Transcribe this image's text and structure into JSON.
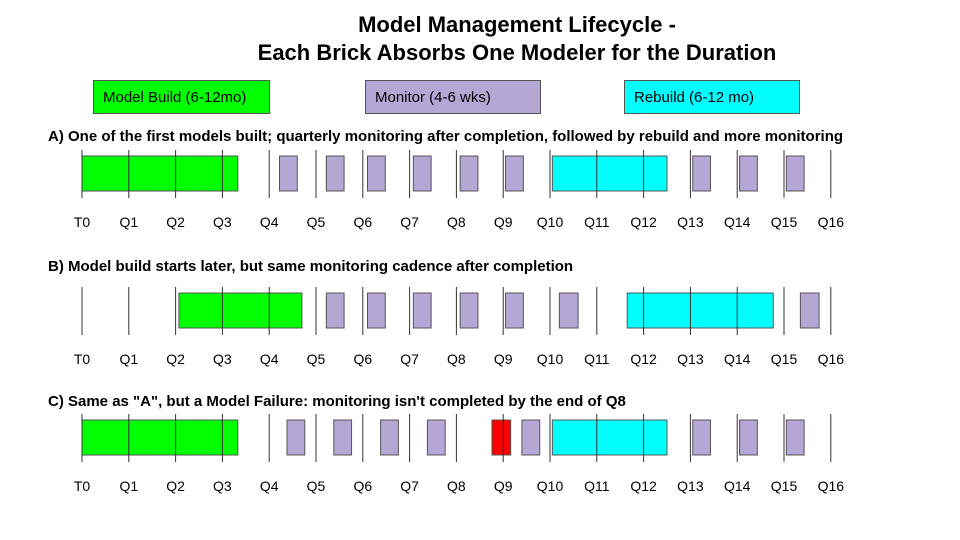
{
  "title_line1": "Model Management Lifecycle -",
  "title_line2": "Each Brick Absorbs One Modeler for the Duration",
  "legend": [
    {
      "label": "Model Build (6-12mo)",
      "color": "#00ff00"
    },
    {
      "label": "Monitor (4-6 wks)",
      "color": "#b4a7d6"
    },
    {
      "label": "Rebuild (6-12 mo)",
      "color": "#00ffff"
    }
  ],
  "colors": {
    "build": "#00ff00",
    "monitor": "#b4a7d6",
    "rebuild": "#00ffff",
    "failure": "#ff0000"
  },
  "quarter_labels": [
    "T0",
    "Q1",
    "Q2",
    "Q3",
    "Q4",
    "Q5",
    "Q6",
    "Q7",
    "Q8",
    "Q9",
    "Q10",
    "Q11",
    "Q12",
    "Q13",
    "Q14",
    "Q15",
    "Q16"
  ],
  "scenarios": [
    {
      "label": "A) One of the first models built; quarterly monitoring after completion, followed by rebuild and more monitoring",
      "blocks": [
        {
          "kind": "build",
          "start": 0,
          "end": 3.33
        },
        {
          "kind": "monitor",
          "start": 4.22,
          "end": 4.6
        },
        {
          "kind": "monitor",
          "start": 5.22,
          "end": 5.6
        },
        {
          "kind": "monitor",
          "start": 6.1,
          "end": 6.48
        },
        {
          "kind": "monitor",
          "start": 7.08,
          "end": 7.46
        },
        {
          "kind": "monitor",
          "start": 8.08,
          "end": 8.46
        },
        {
          "kind": "monitor",
          "start": 9.05,
          "end": 9.43
        },
        {
          "kind": "rebuild",
          "start": 10.05,
          "end": 12.5
        },
        {
          "kind": "monitor",
          "start": 13.05,
          "end": 13.43
        },
        {
          "kind": "monitor",
          "start": 14.05,
          "end": 14.43
        },
        {
          "kind": "monitor",
          "start": 15.05,
          "end": 15.43
        }
      ]
    },
    {
      "label": "B) Model build starts later, but same monitoring cadence after completion",
      "blocks": [
        {
          "kind": "build",
          "start": 2.07,
          "end": 4.7
        },
        {
          "kind": "monitor",
          "start": 5.22,
          "end": 5.6
        },
        {
          "kind": "monitor",
          "start": 6.1,
          "end": 6.48
        },
        {
          "kind": "monitor",
          "start": 7.08,
          "end": 7.46
        },
        {
          "kind": "monitor",
          "start": 8.08,
          "end": 8.46
        },
        {
          "kind": "monitor",
          "start": 9.05,
          "end": 9.43
        },
        {
          "kind": "monitor",
          "start": 10.2,
          "end": 10.6
        },
        {
          "kind": "rebuild",
          "start": 11.65,
          "end": 14.77
        },
        {
          "kind": "monitor",
          "start": 15.35,
          "end": 15.75
        }
      ]
    },
    {
      "label": "C) Same as \"A\", but a Model Failure: monitoring isn't completed by the end of Q8",
      "blocks": [
        {
          "kind": "build",
          "start": 0,
          "end": 3.33
        },
        {
          "kind": "monitor",
          "start": 4.38,
          "end": 4.76
        },
        {
          "kind": "monitor",
          "start": 5.38,
          "end": 5.76
        },
        {
          "kind": "monitor",
          "start": 6.38,
          "end": 6.76
        },
        {
          "kind": "monitor",
          "start": 7.38,
          "end": 7.76
        },
        {
          "kind": "failure",
          "start": 8.76,
          "end": 9.16
        },
        {
          "kind": "monitor",
          "start": 9.4,
          "end": 9.78
        },
        {
          "kind": "rebuild",
          "start": 10.05,
          "end": 12.5
        },
        {
          "kind": "monitor",
          "start": 13.05,
          "end": 13.43
        },
        {
          "kind": "monitor",
          "start": 14.05,
          "end": 14.43
        },
        {
          "kind": "monitor",
          "start": 15.05,
          "end": 15.43
        }
      ]
    }
  ]
}
